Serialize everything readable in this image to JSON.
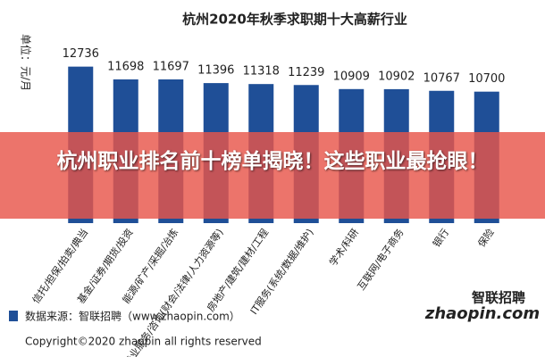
{
  "chart_data": {
    "type": "bar",
    "title": "杭州2020年秋季求职期十大高薪行业",
    "y_label": "单位：元/月",
    "categories": [
      "信托/担保/拍卖/典当",
      "基金/证券/期货/投资",
      "能源/矿产/采掘/冶炼",
      "专业服务/咨询(财会/法律/人力资源等)",
      "房地产/建筑/建材/工程",
      "IT服务(系统/数据/维护)",
      "学术/科研",
      "互联网/电子商务",
      "银行",
      "保险"
    ],
    "values": [
      12736,
      11698,
      11697,
      11396,
      11318,
      11239,
      10909,
      10902,
      10767,
      10700
    ],
    "color": "#1f4f97",
    "ylim": [
      0,
      13800
    ]
  },
  "banner": "杭州职业排名前十榜单揭晓！这些职业最抢眼！",
  "source": "数据来源：智联招聘（www.zhaopin.com）",
  "copyright": "Copyright©2020 zhaopin all rights reserved",
  "logo": {
    "brand": "智联招聘",
    "site": "zhaopin.com"
  }
}
